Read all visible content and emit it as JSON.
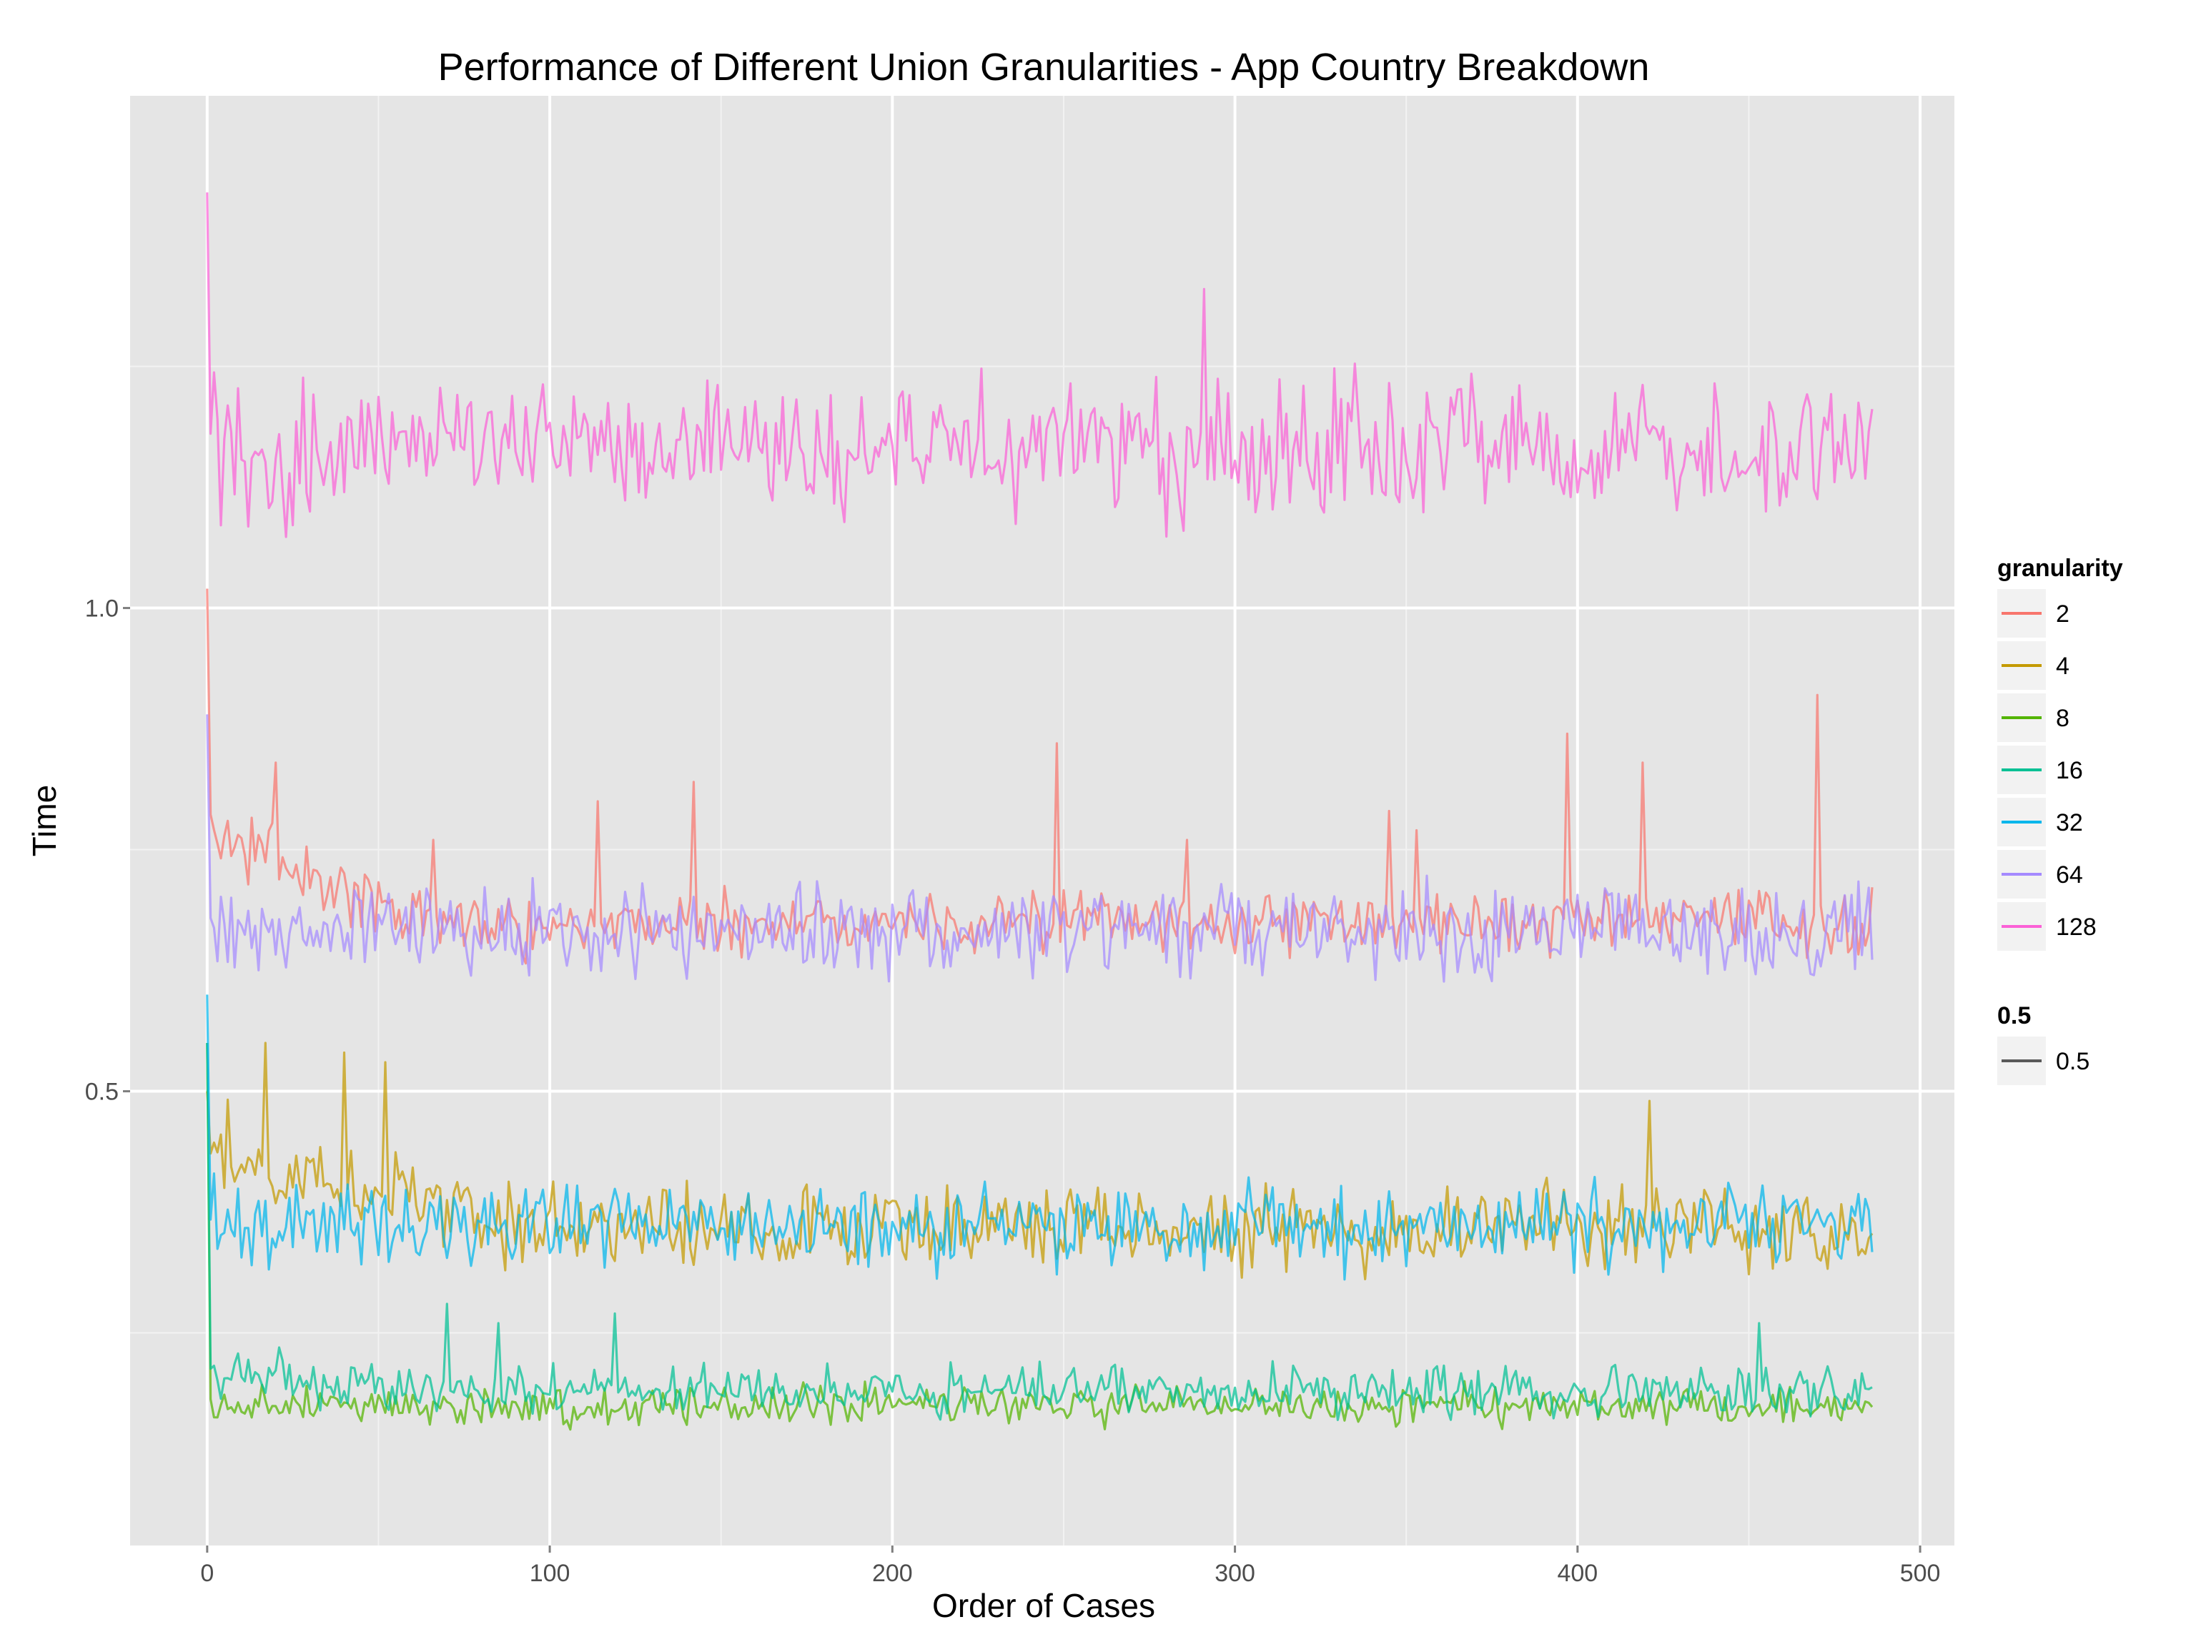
{
  "chart_data": {
    "type": "line",
    "title": "Performance of Different Union Granularities - App Country Breakdown",
    "xlabel": "Order of Cases",
    "ylabel": "Time",
    "xlim": [
      -22.5,
      510
    ],
    "ylim": [
      0.03,
      1.53
    ],
    "x_ticks": [
      0,
      100,
      200,
      300,
      400,
      500
    ],
    "x_tick_labels": [
      "0",
      "100",
      "200",
      "300",
      "400",
      "500"
    ],
    "x_minor_ticks": [
      50,
      150,
      250,
      350,
      450
    ],
    "y_ticks": [
      0.5,
      1.0
    ],
    "y_tick_labels": [
      "0.5",
      "1.0"
    ],
    "y_minor_ticks": [
      0.25,
      0.75,
      1.25
    ],
    "grid": true,
    "panel_color": "#e5e5e5",
    "n_points": 487,
    "legend": {
      "position": "right",
      "title": "granularity",
      "title2": "0.5",
      "entry2": "0.5",
      "entry2_color": "#595959"
    },
    "series": [
      {
        "name": "2",
        "color": "#f8766d",
        "start": 1.02,
        "mean": 0.675,
        "jitter": 0.026,
        "start_mean": 0.77,
        "decay_len": 60,
        "spikes": [
          [
            20,
            0.84
          ],
          [
            66,
            0.76
          ],
          [
            114,
            0.8
          ],
          [
            142,
            0.82
          ],
          [
            248,
            0.86
          ],
          [
            286,
            0.76
          ],
          [
            345,
            0.79
          ],
          [
            353,
            0.77
          ],
          [
            397,
            0.87
          ],
          [
            419,
            0.84
          ],
          [
            470,
            0.91
          ]
        ]
      },
      {
        "name": "4",
        "color": "#c49a00",
        "start": 0.5,
        "mean": 0.36,
        "jitter": 0.035,
        "start_mean": 0.44,
        "decay_len": 90,
        "spikes": [
          [
            17,
            0.55
          ],
          [
            40,
            0.54
          ],
          [
            52,
            0.53
          ],
          [
            421,
            0.49
          ],
          [
            467,
            0.39
          ]
        ]
      },
      {
        "name": "8",
        "color": "#53b400",
        "start": 0.55,
        "mean": 0.175,
        "jitter": 0.015,
        "start_mean": 0.18,
        "decay_len": 5,
        "spikes": []
      },
      {
        "name": "16",
        "color": "#00c094",
        "start": 0.55,
        "mean": 0.19,
        "jitter": 0.02,
        "start_mean": 0.21,
        "decay_len": 40,
        "spikes": [
          [
            70,
            0.28
          ],
          [
            85,
            0.26
          ],
          [
            119,
            0.27
          ],
          [
            453,
            0.26
          ]
        ]
      },
      {
        "name": "32",
        "color": "#00b6eb",
        "start": 0.6,
        "mean": 0.36,
        "jitter": 0.032,
        "start_mean": 0.37,
        "decay_len": 10,
        "spikes": []
      },
      {
        "name": "64",
        "color": "#a58aff",
        "start": 0.89,
        "mean": 0.665,
        "jitter": 0.038,
        "start_mean": 0.67,
        "decay_len": 10,
        "spikes": []
      },
      {
        "name": "128",
        "color": "#fb61d7",
        "start": 1.43,
        "mean": 1.165,
        "jitter": 0.055,
        "start_mean": 1.165,
        "decay_len": 5,
        "spikes": [
          [
            291,
            1.33
          ]
        ]
      }
    ]
  }
}
